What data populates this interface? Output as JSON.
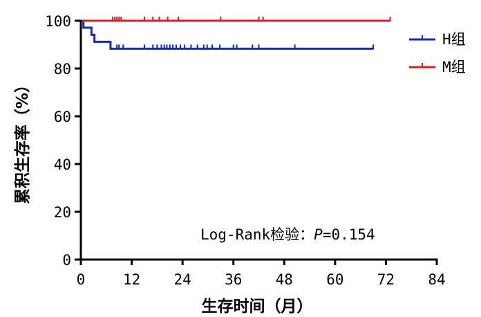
{
  "chart_data": {
    "type": "line",
    "subtype": "kaplan-meier",
    "title": "",
    "xlabel": "生存时间（月）",
    "ylabel": "累积生存率（%）",
    "xlim": [
      0,
      84
    ],
    "ylim": [
      0,
      100
    ],
    "xticks": [
      0,
      12,
      24,
      36,
      48,
      60,
      72,
      84
    ],
    "yticks": [
      0,
      20,
      40,
      60,
      80,
      100
    ],
    "grid": false,
    "legend_position": "top-right",
    "annotation": {
      "prefix": "Log-Rank检验：",
      "p_symbol": "P",
      "p_rest": "=0.154"
    },
    "series": [
      {
        "name": "H组",
        "color": "#1428c8",
        "steps": [
          {
            "x": 0,
            "y": 100
          },
          {
            "x": 0.6,
            "y": 100
          },
          {
            "x": 0.6,
            "y": 97.1
          },
          {
            "x": 2.5,
            "y": 97.1
          },
          {
            "x": 2.5,
            "y": 94.1
          },
          {
            "x": 3.2,
            "y": 94.1
          },
          {
            "x": 3.2,
            "y": 91.2
          },
          {
            "x": 7.0,
            "y": 91.2
          },
          {
            "x": 7.0,
            "y": 88.3
          },
          {
            "x": 69,
            "y": 88.3
          }
        ],
        "censored_x": [
          8.5,
          9,
          10,
          15,
          17,
          18,
          19,
          19.7,
          20.3,
          21,
          21.7,
          22.5,
          23.5,
          24.5,
          26,
          27.5,
          29,
          29.8,
          31,
          32.8,
          36,
          36.8,
          40.5,
          42,
          50.5,
          69
        ]
      },
      {
        "name": "M组",
        "color": "#e31a1c",
        "steps": [
          {
            "x": 0,
            "y": 100
          },
          {
            "x": 73,
            "y": 100
          }
        ],
        "censored_x": [
          7.5,
          8,
          8.5,
          9,
          9.5,
          15,
          17,
          18.5,
          20.5,
          23,
          33,
          42,
          43,
          73
        ]
      }
    ]
  }
}
